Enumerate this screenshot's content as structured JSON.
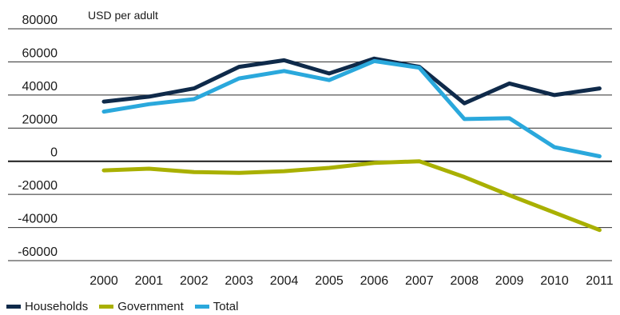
{
  "chart_data": {
    "type": "line",
    "unit_label": "USD per adult",
    "x": [
      "2000",
      "2001",
      "2002",
      "2003",
      "2004",
      "2005",
      "2006",
      "2007",
      "2008",
      "2009",
      "2010",
      "2011"
    ],
    "ylim": [
      -60000,
      80000
    ],
    "yticks": [
      80000,
      60000,
      40000,
      20000,
      0,
      -20000,
      -40000,
      -60000
    ],
    "grid": true,
    "legend_position": "bottom-left",
    "series": [
      {
        "name": "Households",
        "color": "#0f2a4a",
        "values": [
          36000,
          39000,
          44000,
          57000,
          61000,
          53000,
          62000,
          57000,
          35000,
          47000,
          40000,
          44000
        ]
      },
      {
        "name": "Government",
        "color": "#a9b000",
        "values": [
          -5500,
          -4500,
          -6500,
          -7000,
          -6000,
          -4000,
          -1000,
          0,
          -9500,
          -20500,
          -31000,
          -41500
        ]
      },
      {
        "name": "Total",
        "color": "#2aa8dc",
        "values": [
          30000,
          34500,
          37500,
          50000,
          54500,
          49000,
          60500,
          56500,
          25500,
          26000,
          8500,
          3000
        ]
      }
    ]
  }
}
